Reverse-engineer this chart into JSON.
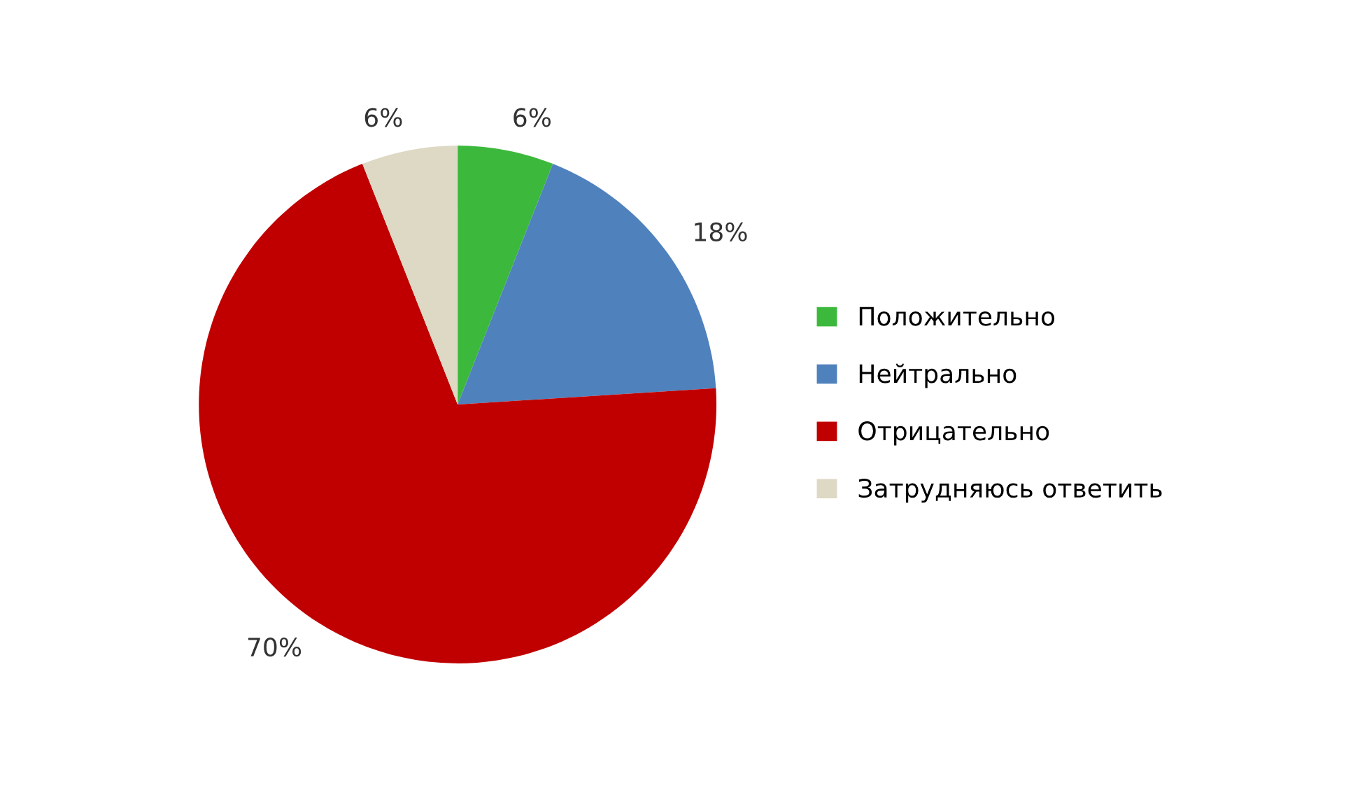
{
  "chart_data": {
    "type": "pie",
    "categories": [
      "Положительно",
      "Нейтрально",
      "Отрицательно",
      "Затрудняюсь ответить"
    ],
    "values": [
      6,
      18,
      70,
      6
    ],
    "colors": [
      "#3cb93c",
      "#4f81bd",
      "#c00000",
      "#ddd9c4"
    ],
    "value_labels": [
      "6%",
      "18%",
      "70%",
      "6%"
    ],
    "legend": "right"
  }
}
